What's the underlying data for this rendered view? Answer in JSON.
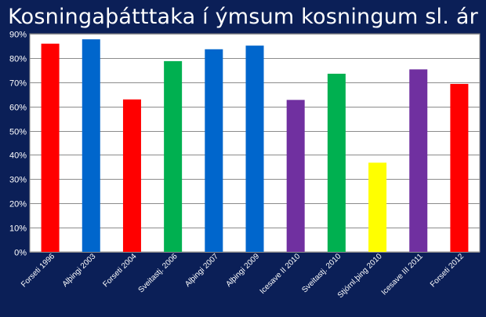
{
  "chart_data": {
    "type": "bar",
    "title": "Kosningaþátttaka í ýmsum kosningum sl. ár",
    "xlabel": "",
    "ylabel": "",
    "ylim": [
      0,
      90
    ],
    "y_ticks": [
      "0%",
      "10%",
      "20%",
      "30%",
      "40%",
      "50%",
      "60%",
      "70%",
      "80%",
      "90%"
    ],
    "grid": true,
    "categories": [
      "Forseti 1996",
      "Alþingi 2003",
      "Forseti 2004",
      "Sveitastj. 2006",
      "Alþingi 2007",
      "Alþingi 2009",
      "Icesave II 2010",
      "Sveitastj. 2010",
      "Stjórnl.þing 2010",
      "Icesave III 2011",
      "Forseti 2012"
    ],
    "values": [
      85.9,
      87.7,
      62.9,
      78.7,
      83.6,
      85.1,
      62.7,
      73.5,
      36.8,
      75.3,
      69.3
    ],
    "bar_colors": [
      "#ff0000",
      "#0066cc",
      "#ff0000",
      "#00b050",
      "#0066cc",
      "#0066cc",
      "#7030a0",
      "#00b050",
      "#ffff00",
      "#7030a0",
      "#ff0000"
    ],
    "plot_background": "#ffffff",
    "frame_background": "#0b1f57"
  }
}
